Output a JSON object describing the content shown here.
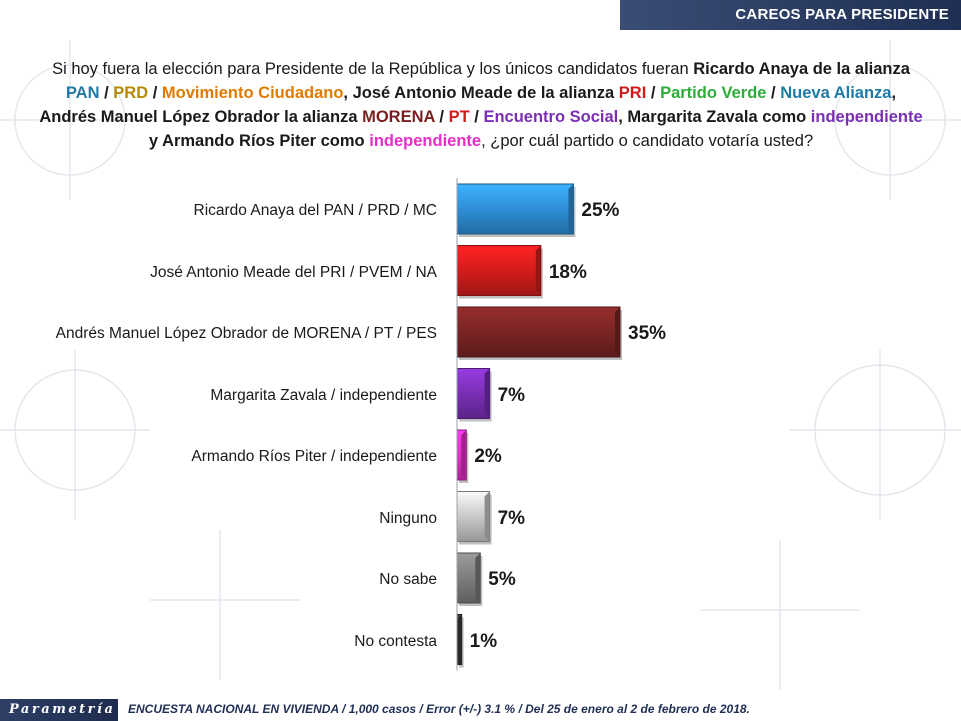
{
  "header": {
    "title": "CAREOS PARA PRESIDENTE"
  },
  "question": {
    "parts": [
      {
        "text": "Si hoy fuera la elección para Presidente de la República y los únicos candidatos fueran ",
        "cls": ""
      },
      {
        "text": "Ricardo Anaya de la alianza ",
        "cls": "b"
      },
      {
        "text": "PAN",
        "cls": "q-pan"
      },
      {
        "text": " / ",
        "cls": "b"
      },
      {
        "text": "PRD",
        "cls": "q-prd"
      },
      {
        "text": " / ",
        "cls": "b"
      },
      {
        "text": "Movimiento Ciudadano",
        "cls": "q-mc"
      },
      {
        "text": ", José Antonio Meade de la alianza ",
        "cls": "b"
      },
      {
        "text": "PRI",
        "cls": "q-pri"
      },
      {
        "text": " / ",
        "cls": "b"
      },
      {
        "text": "Partido Verde",
        "cls": "q-pv"
      },
      {
        "text": " / ",
        "cls": "b"
      },
      {
        "text": "Nueva Alianza",
        "cls": "q-nueva"
      },
      {
        "text": ", Andrés Manuel López Obrador la alianza ",
        "cls": "b"
      },
      {
        "text": "MORENA",
        "cls": "q-morena"
      },
      {
        "text": " / ",
        "cls": "b"
      },
      {
        "text": "PT",
        "cls": "q-pt"
      },
      {
        "text": " / ",
        "cls": "b"
      },
      {
        "text": "Encuentro Social",
        "cls": "q-es"
      },
      {
        "text": ", Margarita Zavala como ",
        "cls": "b"
      },
      {
        "text": "independiente",
        "cls": "q-ind1"
      },
      {
        "text": " y Armando Ríos Piter como ",
        "cls": "b"
      },
      {
        "text": "independiente",
        "cls": "q-ind2"
      },
      {
        "text": ", ¿por cuál partido o candidato votaría usted?",
        "cls": ""
      }
    ]
  },
  "chart_data": {
    "type": "bar",
    "orientation": "horizontal",
    "title": "",
    "xlabel": "",
    "ylabel": "",
    "xlim": [
      0,
      35
    ],
    "grid": false,
    "legend": "none",
    "categories": [
      "Ricardo Anaya del PAN / PRD / MC",
      "José Antonio Meade del PRI / PVEM / NA",
      "Andrés Manuel López Obrador de MORENA / PT / PES",
      "Margarita Zavala / independiente",
      "Armando Ríos Piter / independiente",
      "Ninguno",
      "No sabe",
      "No contesta"
    ],
    "values": [
      25,
      18,
      35,
      7,
      2,
      7,
      5,
      1
    ],
    "value_labels": [
      "25%",
      "18%",
      "35%",
      "7%",
      "2%",
      "7%",
      "5%",
      "1%"
    ],
    "colors": [
      "#2f8fd8",
      "#d41c1c",
      "#7a2424",
      "#7a2fb5",
      "#e52fc8",
      "#c8c8c8",
      "#7d7d7d",
      "#3a3a3a"
    ]
  },
  "footer": {
    "logo": "Parametría",
    "note": "ENCUESTA NACIONAL EN VIVIENDA / 1,000 casos / Error (+/-) 3.1 % / Del 25 de enero al 2 de febrero de 2018."
  }
}
